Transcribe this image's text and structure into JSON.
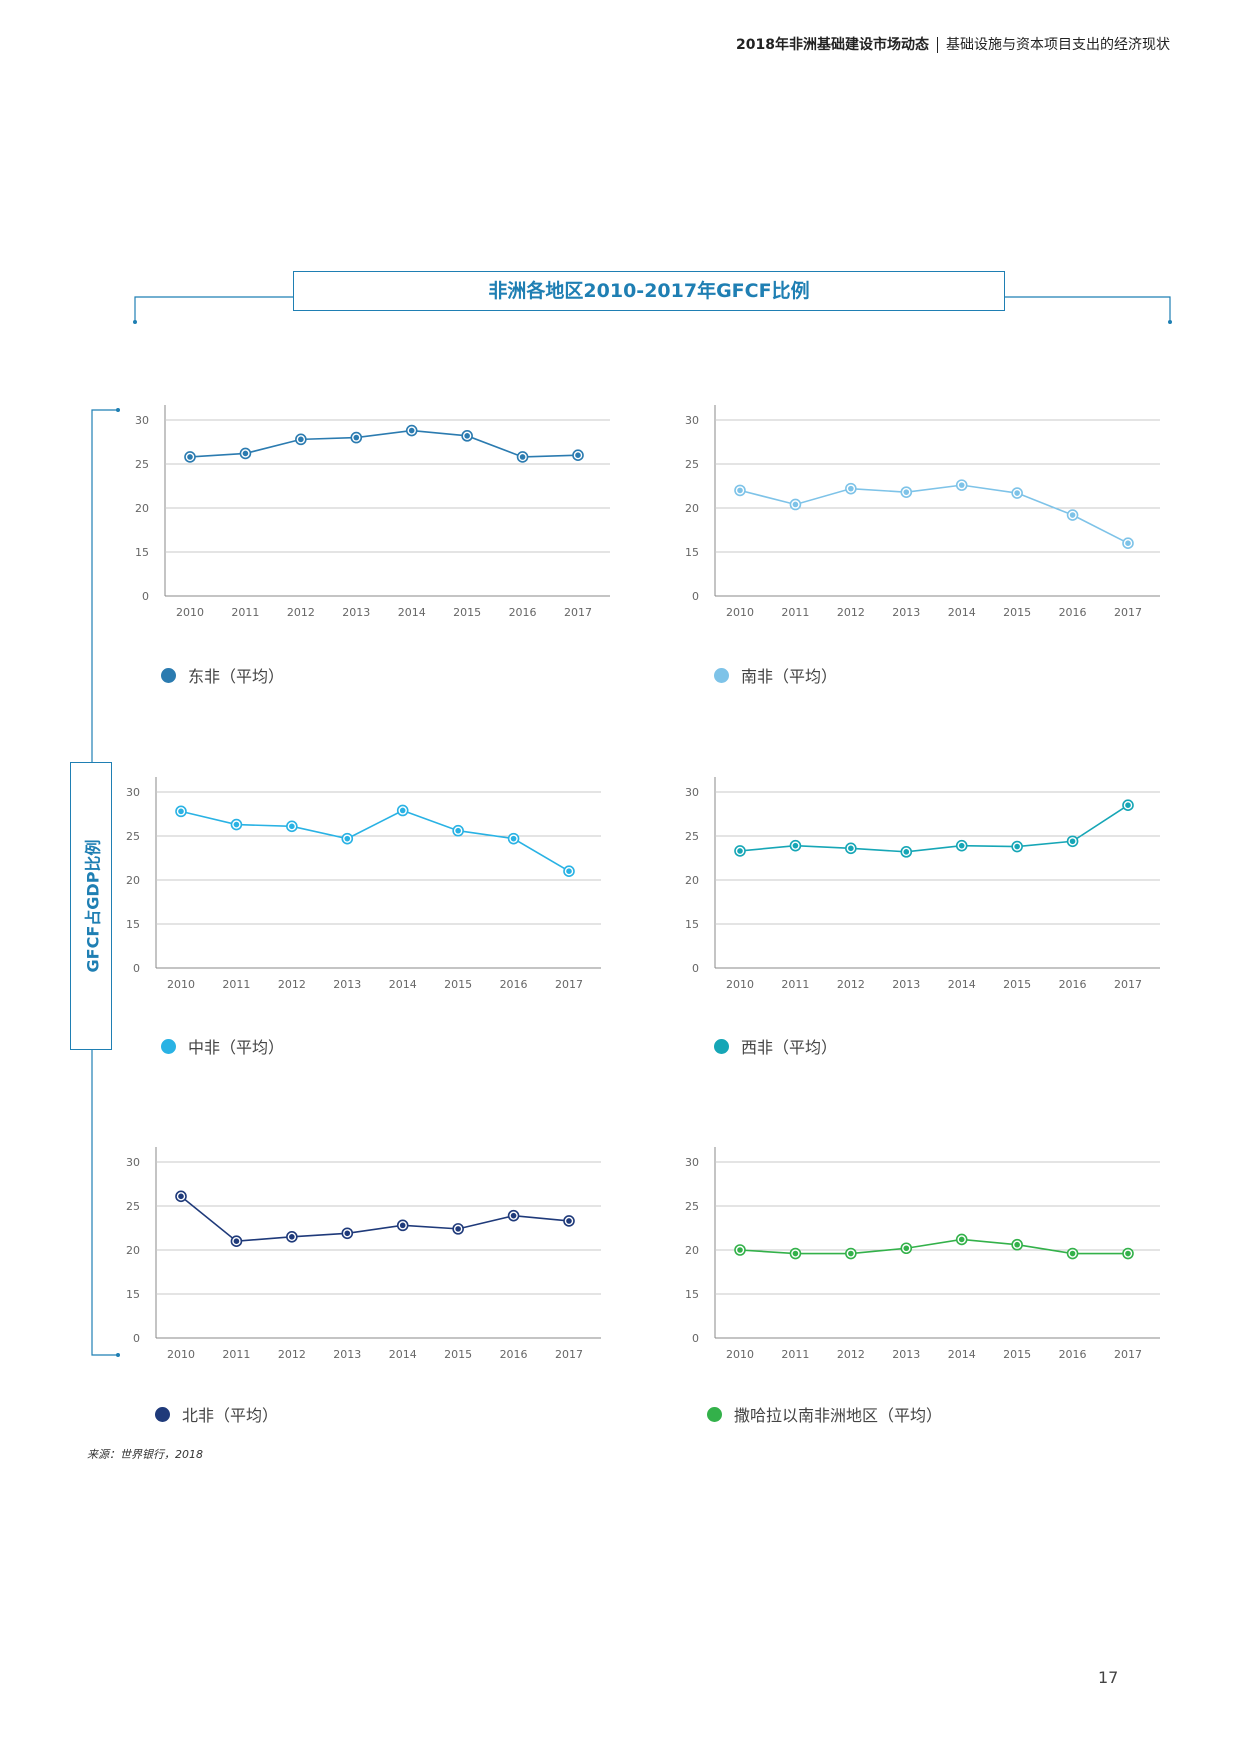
{
  "header": {
    "left": "2018年非洲基础建设市场动态",
    "right": "基础设施与资本项目支出的经济现状"
  },
  "title": "非洲各地区2010-2017年GFCF比例",
  "y_axis_label": "GFCF占GDP比例",
  "source": "来源：世界银行，2018",
  "page_number": "17",
  "chart_data": [
    {
      "type": "line",
      "name": "东非（平均）",
      "color": "#2b7bb0",
      "categories": [
        "2010",
        "2011",
        "2012",
        "2013",
        "2014",
        "2015",
        "2016",
        "2017"
      ],
      "values": [
        25.8,
        26.2,
        27.8,
        28.0,
        28.8,
        28.2,
        25.8,
        26.0
      ],
      "y_ticks": [
        "0",
        "15",
        "20",
        "25",
        "30"
      ],
      "legend": "东非（平均）"
    },
    {
      "type": "line",
      "name": "南非（平均）",
      "color": "#7ec3e8",
      "categories": [
        "2010",
        "2011",
        "2012",
        "2013",
        "2014",
        "2015",
        "2016",
        "2017"
      ],
      "values": [
        22.0,
        20.4,
        22.2,
        21.8,
        22.6,
        21.7,
        19.2,
        16.0
      ],
      "y_ticks": [
        "0",
        "15",
        "20",
        "25",
        "30"
      ],
      "legend": "南非（平均）"
    },
    {
      "type": "line",
      "name": "中非（平均）",
      "color": "#29b2e4",
      "categories": [
        "2010",
        "2011",
        "2012",
        "2013",
        "2014",
        "2015",
        "2016",
        "2017"
      ],
      "values": [
        27.8,
        26.3,
        26.1,
        24.7,
        27.9,
        25.6,
        24.7,
        21.0
      ],
      "y_ticks": [
        "0",
        "15",
        "20",
        "25",
        "30"
      ],
      "legend": "中非（平均）"
    },
    {
      "type": "line",
      "name": "西非（平均）",
      "color": "#16a6b6",
      "categories": [
        "2010",
        "2011",
        "2012",
        "2013",
        "2014",
        "2015",
        "2016",
        "2017"
      ],
      "values": [
        23.3,
        23.9,
        23.6,
        23.2,
        23.9,
        23.8,
        24.4,
        28.5
      ],
      "y_ticks": [
        "0",
        "15",
        "20",
        "25",
        "30"
      ],
      "legend": "西非（平均）"
    },
    {
      "type": "line",
      "name": "北非（平均）",
      "color": "#1f3a7a",
      "categories": [
        "2010",
        "2011",
        "2012",
        "2013",
        "2014",
        "2015",
        "2016",
        "2017"
      ],
      "values": [
        26.1,
        21.0,
        21.5,
        21.9,
        22.8,
        22.4,
        23.9,
        23.3
      ],
      "y_ticks": [
        "0",
        "15",
        "20",
        "25",
        "30"
      ],
      "legend": "北非（平均）"
    },
    {
      "type": "line",
      "name": "撒哈拉以南非洲地区（平均）",
      "color": "#33b14a",
      "categories": [
        "2010",
        "2011",
        "2012",
        "2013",
        "2014",
        "2015",
        "2016",
        "2017"
      ],
      "values": [
        20.0,
        19.6,
        19.6,
        20.2,
        21.2,
        20.6,
        19.6,
        19.6
      ],
      "y_ticks": [
        "0",
        "15",
        "20",
        "25",
        "30"
      ],
      "legend": "撒哈拉以南非洲地区（平均）"
    }
  ]
}
